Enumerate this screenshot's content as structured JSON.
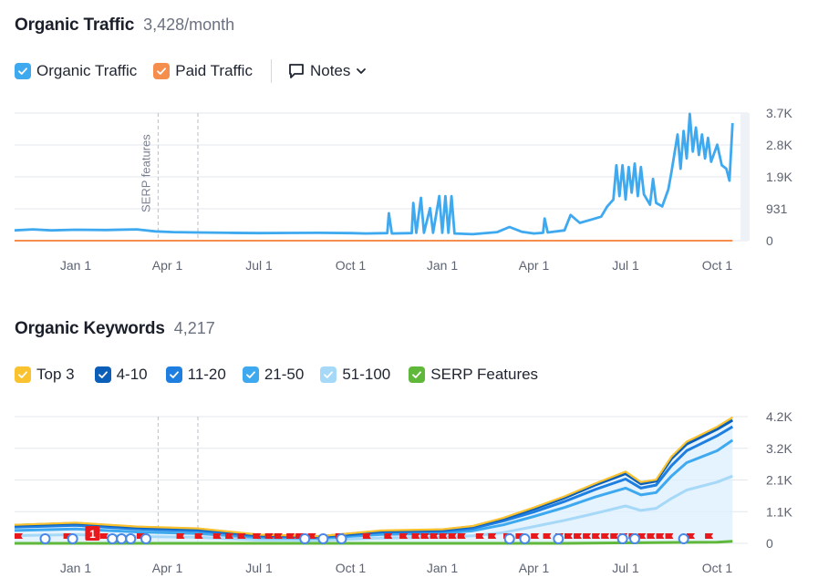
{
  "traffic": {
    "title": "Organic Traffic",
    "metric": "3,428/month",
    "legend": [
      {
        "label": "Organic Traffic",
        "color": "#3fa9f0"
      },
      {
        "label": "Paid Traffic",
        "color": "#f58d4d"
      }
    ],
    "notes_label": "Notes"
  },
  "keywords": {
    "title": "Organic Keywords",
    "metric": "4,217",
    "legend": [
      {
        "label": "Top 3",
        "color": "#f9c22e"
      },
      {
        "label": "4-10",
        "color": "#0c5fb8"
      },
      {
        "label": "11-20",
        "color": "#1f7fe0"
      },
      {
        "label": "21-50",
        "color": "#3fa9f0"
      },
      {
        "label": "51-100",
        "color": "#a6d8f8"
      },
      {
        "label": "SERP Features",
        "color": "#5fb83a"
      }
    ],
    "serp_badge": "1"
  },
  "chart_data": [
    {
      "type": "line",
      "title": "Organic Traffic",
      "x_ticks": [
        "Jan 1",
        "Apr 1",
        "Jul 1",
        "Oct 1",
        "Jan 1",
        "Apr 1",
        "Jul 1",
        "Oct 1"
      ],
      "x_tick_months": [
        2,
        5,
        8,
        11,
        14,
        17,
        20,
        23
      ],
      "xlim_months": [
        0,
        24
      ],
      "y_ticks": [
        "0",
        "931",
        "1.9K",
        "2.8K",
        "3.7K"
      ],
      "y_tick_values": [
        0,
        931,
        1862,
        2793,
        3724
      ],
      "ylim": [
        0,
        3724
      ],
      "grid": true,
      "annotations": [
        {
          "label": "SERP features",
          "month": 4.7
        },
        {
          "label": "",
          "month": 6.0
        }
      ],
      "series": [
        {
          "name": "Organic Traffic",
          "color": "#3fa9f0",
          "points": [
            [
              0,
              300
            ],
            [
              0.6,
              330
            ],
            [
              1.2,
              300
            ],
            [
              2,
              320
            ],
            [
              3,
              310
            ],
            [
              4,
              330
            ],
            [
              4.6,
              270
            ],
            [
              5.2,
              250
            ],
            [
              6,
              240
            ],
            [
              7,
              230
            ],
            [
              8,
              220
            ],
            [
              9,
              225
            ],
            [
              10,
              230
            ],
            [
              11,
              220
            ],
            [
              11.5,
              210
            ],
            [
              12.2,
              220
            ],
            [
              12.25,
              800
            ],
            [
              12.35,
              210
            ],
            [
              13,
              220
            ],
            [
              13.05,
              1100
            ],
            [
              13.15,
              230
            ],
            [
              13.3,
              1250
            ],
            [
              13.4,
              230
            ],
            [
              13.6,
              950
            ],
            [
              13.7,
              230
            ],
            [
              13.9,
              1300
            ],
            [
              14.0,
              230
            ],
            [
              14.1,
              1300
            ],
            [
              14.2,
              230
            ],
            [
              14.3,
              1300
            ],
            [
              14.4,
              210
            ],
            [
              15,
              190
            ],
            [
              15.8,
              250
            ],
            [
              16.2,
              400
            ],
            [
              16.6,
              260
            ],
            [
              17.0,
              210
            ],
            [
              17.3,
              230
            ],
            [
              17.35,
              650
            ],
            [
              17.45,
              240
            ],
            [
              18.0,
              300
            ],
            [
              18.2,
              750
            ],
            [
              18.5,
              520
            ],
            [
              18.9,
              620
            ],
            [
              19.2,
              700
            ],
            [
              19.4,
              1000
            ],
            [
              19.6,
              1200
            ],
            [
              19.7,
              2200
            ],
            [
              19.8,
              1300
            ],
            [
              19.9,
              2200
            ],
            [
              20.0,
              1200
            ],
            [
              20.1,
              2150
            ],
            [
              20.2,
              1400
            ],
            [
              20.3,
              2250
            ],
            [
              20.4,
              1300
            ],
            [
              20.5,
              2150
            ],
            [
              20.6,
              1350
            ],
            [
              20.8,
              1050
            ],
            [
              20.9,
              1800
            ],
            [
              21.0,
              1100
            ],
            [
              21.2,
              1000
            ],
            [
              21.4,
              1500
            ],
            [
              21.5,
              2000
            ],
            [
              21.7,
              3100
            ],
            [
              21.8,
              2100
            ],
            [
              21.9,
              3200
            ],
            [
              22.0,
              2400
            ],
            [
              22.1,
              3700
            ],
            [
              22.2,
              2600
            ],
            [
              22.3,
              3300
            ],
            [
              22.4,
              2500
            ],
            [
              22.5,
              3100
            ],
            [
              22.6,
              2400
            ],
            [
              22.7,
              3000
            ],
            [
              22.8,
              2300
            ],
            [
              23.0,
              2800
            ],
            [
              23.15,
              2200
            ],
            [
              23.3,
              2100
            ],
            [
              23.4,
              1750
            ],
            [
              23.5,
              3428
            ]
          ]
        },
        {
          "name": "Paid Traffic",
          "color": "#f58d4d",
          "points": [
            [
              0,
              0
            ],
            [
              23.5,
              0
            ]
          ]
        }
      ]
    },
    {
      "type": "area",
      "title": "Organic Keywords",
      "x_ticks": [
        "Jan 1",
        "Apr 1",
        "Jul 1",
        "Oct 1",
        "Jan 1",
        "Apr 1",
        "Jul 1",
        "Oct 1"
      ],
      "x_tick_months": [
        2,
        5,
        8,
        11,
        14,
        17,
        20,
        23
      ],
      "xlim_months": [
        0,
        24
      ],
      "y_ticks": [
        "0",
        "1.1K",
        "2.1K",
        "3.2K",
        "4.2K"
      ],
      "y_tick_values": [
        0,
        1060,
        2120,
        3180,
        4240
      ],
      "ylim": [
        0,
        4240
      ],
      "grid": true,
      "stacked": true,
      "series": [
        {
          "name": "Top 3",
          "color": "#f9c22e",
          "points": [
            [
              0,
              620
            ],
            [
              2,
              690
            ],
            [
              4,
              560
            ],
            [
              6,
              500
            ],
            [
              8,
              290
            ],
            [
              10,
              240
            ],
            [
              12,
              430
            ],
            [
              14,
              470
            ],
            [
              15,
              580
            ],
            [
              16,
              850
            ],
            [
              17,
              1200
            ],
            [
              18,
              1570
            ],
            [
              19,
              2000
            ],
            [
              20,
              2400
            ],
            [
              20.5,
              2050
            ],
            [
              21.0,
              2130
            ],
            [
              21.5,
              2900
            ],
            [
              22,
              3400
            ],
            [
              23,
              3900
            ],
            [
              23.5,
              4217
            ]
          ]
        },
        {
          "name": "4-10",
          "color": "#0c5fb8",
          "points": [
            [
              0,
              600
            ],
            [
              2,
              670
            ],
            [
              4,
              540
            ],
            [
              6,
              480
            ],
            [
              8,
              275
            ],
            [
              10,
              230
            ],
            [
              12,
              410
            ],
            [
              14,
              450
            ],
            [
              15,
              560
            ],
            [
              16,
              820
            ],
            [
              17,
              1150
            ],
            [
              18,
              1520
            ],
            [
              19,
              1950
            ],
            [
              20,
              2330
            ],
            [
              20.5,
              1990
            ],
            [
              21.0,
              2080
            ],
            [
              21.5,
              2830
            ],
            [
              22,
              3320
            ],
            [
              23,
              3820
            ],
            [
              23.5,
              4120
            ]
          ]
        },
        {
          "name": "11-20",
          "color": "#1f7fe0",
          "points": [
            [
              0,
              540
            ],
            [
              2,
              600
            ],
            [
              4,
              480
            ],
            [
              6,
              420
            ],
            [
              8,
              240
            ],
            [
              10,
              200
            ],
            [
              12,
              370
            ],
            [
              14,
              400
            ],
            [
              15,
              500
            ],
            [
              16,
              750
            ],
            [
              17,
              1050
            ],
            [
              18,
              1400
            ],
            [
              19,
              1800
            ],
            [
              20,
              2150
            ],
            [
              20.5,
              1850
            ],
            [
              21.0,
              1950
            ],
            [
              21.5,
              2600
            ],
            [
              22,
              3100
            ],
            [
              23,
              3600
            ],
            [
              23.5,
              3900
            ]
          ]
        },
        {
          "name": "21-50",
          "color": "#3fa9f0",
          "points": [
            [
              0,
              430
            ],
            [
              2,
              480
            ],
            [
              4,
              380
            ],
            [
              6,
              330
            ],
            [
              8,
              190
            ],
            [
              10,
              170
            ],
            [
              12,
              300
            ],
            [
              14,
              330
            ],
            [
              15,
              420
            ],
            [
              16,
              620
            ],
            [
              17,
              900
            ],
            [
              18,
              1200
            ],
            [
              19,
              1550
            ],
            [
              20,
              1850
            ],
            [
              20.5,
              1620
            ],
            [
              21.0,
              1700
            ],
            [
              21.5,
              2250
            ],
            [
              22,
              2700
            ],
            [
              23,
              3100
            ],
            [
              23.5,
              3450
            ]
          ]
        },
        {
          "name": "51-100",
          "color": "#a6d8f8",
          "points": [
            [
              0,
              260
            ],
            [
              2,
              290
            ],
            [
              4,
              230
            ],
            [
              6,
              200
            ],
            [
              8,
              110
            ],
            [
              10,
              100
            ],
            [
              12,
              180
            ],
            [
              14,
              200
            ],
            [
              15,
              250
            ],
            [
              16,
              360
            ],
            [
              17,
              560
            ],
            [
              18,
              770
            ],
            [
              19,
              1000
            ],
            [
              20,
              1250
            ],
            [
              20.5,
              1100
            ],
            [
              21.0,
              1170
            ],
            [
              21.5,
              1500
            ],
            [
              22,
              1780
            ],
            [
              23,
              2050
            ],
            [
              23.5,
              2250
            ]
          ]
        },
        {
          "name": "SERP Features",
          "color": "#5fb83a",
          "points": [
            [
              0,
              0
            ],
            [
              1,
              0
            ],
            [
              1.5,
              0
            ],
            [
              12,
              0
            ],
            [
              18,
              0
            ],
            [
              23,
              40
            ],
            [
              23.5,
              70
            ]
          ]
        }
      ]
    }
  ]
}
